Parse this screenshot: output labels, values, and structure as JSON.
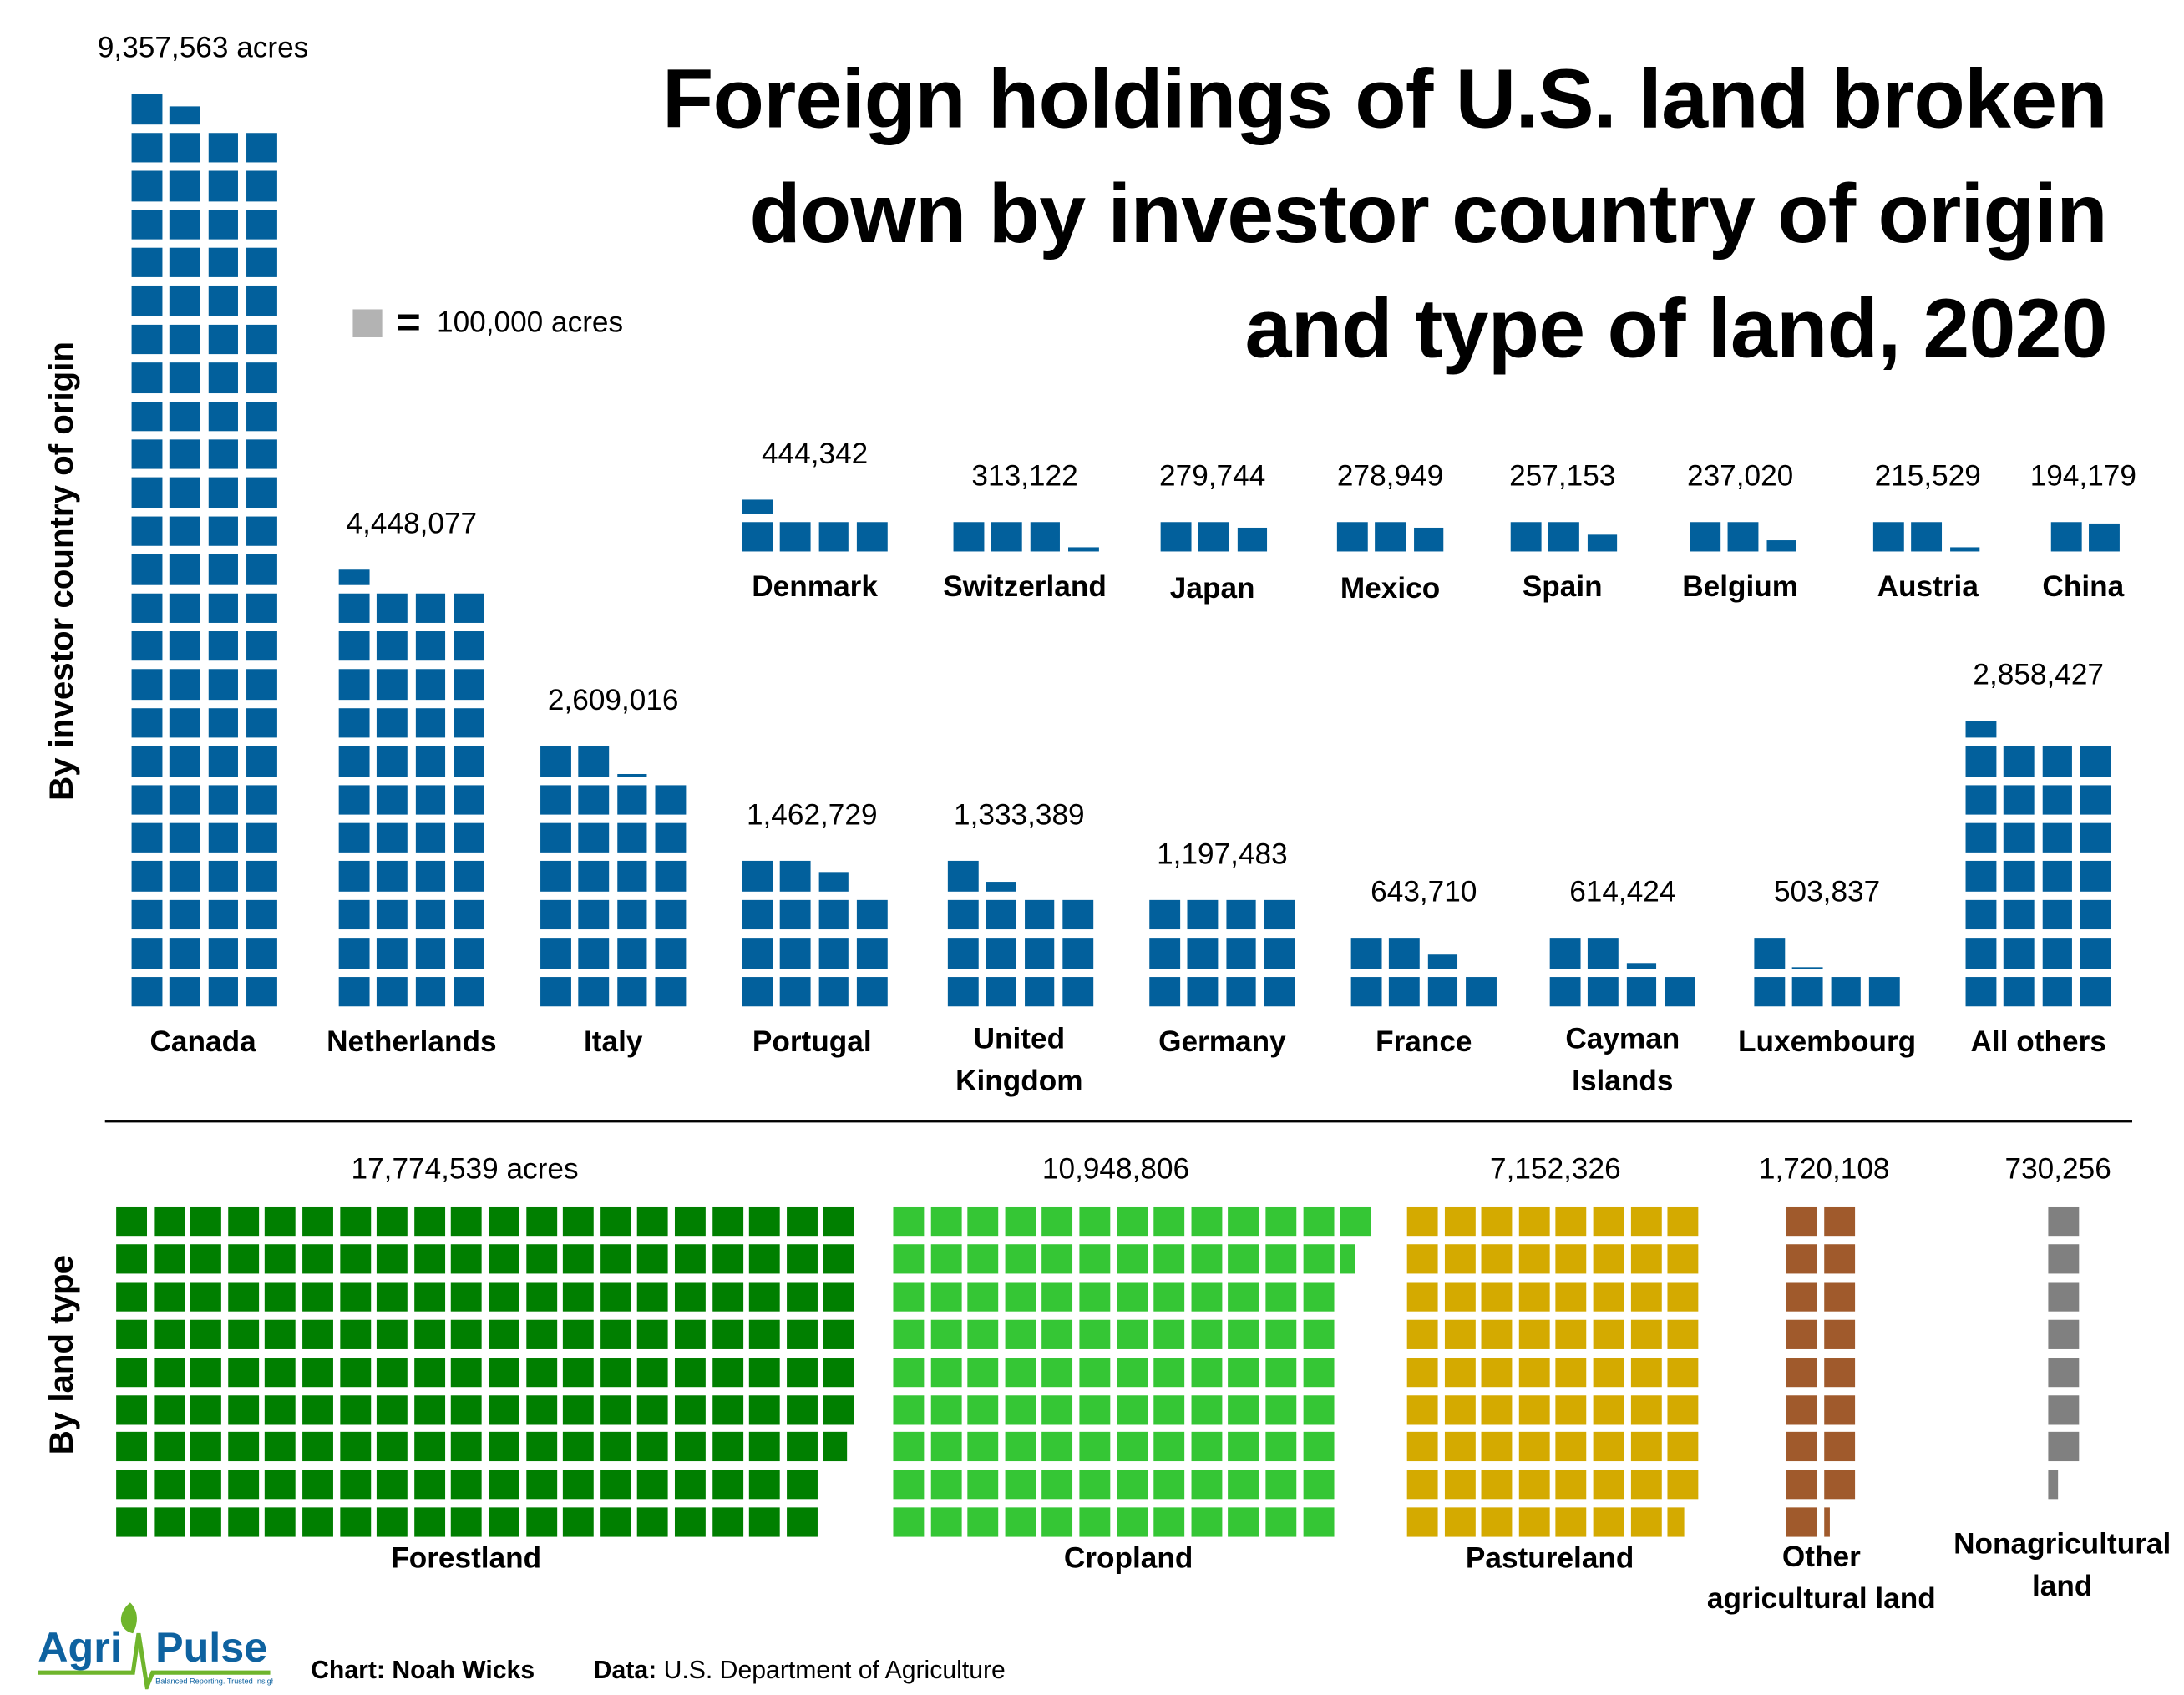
{
  "title": [
    "Foreign holdings of U.S. land broken",
    "down by investor country of origin",
    "and type of land, 2020"
  ],
  "legend": {
    "equals": "=",
    "label": "100,000 acres",
    "swatch_color": "#b3b3b3"
  },
  "axis_labels": {
    "country": "By investor country of origin",
    "land": "By land type"
  },
  "footer": {
    "chart_label": "Chart: Noah Wicks",
    "data_prefix": "Data:",
    "data_source": "U.S. Department of Agriculture",
    "logo_text": "AgriPulse",
    "logo_tagline": "Balanced Reporting. Trusted Insights."
  },
  "chart_data": [
    {
      "type": "waffle",
      "unit": "100,000 acres per square",
      "axis_label": "By investor country of origin",
      "color": "#02609c",
      "categories": [
        {
          "name": "Canada",
          "value": 9357563,
          "label": "9,357,563 acres"
        },
        {
          "name": "Netherlands",
          "value": 4448077,
          "label": "4,448,077"
        },
        {
          "name": "Italy",
          "value": 2609016,
          "label": "2,609,016"
        },
        {
          "name": "Portugal",
          "value": 1462729,
          "label": "1,462,729"
        },
        {
          "name": "United Kingdom",
          "value": 1333389,
          "label": "1,333,389"
        },
        {
          "name": "Germany",
          "value": 1197483,
          "label": "1,197,483"
        },
        {
          "name": "France",
          "value": 643710,
          "label": "643,710"
        },
        {
          "name": "Cayman Islands",
          "value": 614424,
          "label": "614,424"
        },
        {
          "name": "Luxembourg",
          "value": 503837,
          "label": "503,837"
        },
        {
          "name": "All others",
          "value": 2858427,
          "label": "2,858,427"
        },
        {
          "name": "Denmark",
          "value": 444342,
          "label": "444,342"
        },
        {
          "name": "Switzerland",
          "value": 313122,
          "label": "313,122"
        },
        {
          "name": "Japan",
          "value": 279744,
          "label": "279,744"
        },
        {
          "name": "Mexico",
          "value": 278949,
          "label": "278,949"
        },
        {
          "name": "Spain",
          "value": 257153,
          "label": "257,153"
        },
        {
          "name": "Belgium",
          "value": 237020,
          "label": "237,020"
        },
        {
          "name": "Austria",
          "value": 215529,
          "label": "215,529"
        },
        {
          "name": "China",
          "value": 194179,
          "label": "194,179"
        }
      ]
    },
    {
      "type": "waffle",
      "unit": "100,000 acres per square",
      "axis_label": "By land type",
      "categories": [
        {
          "name": "Forestland",
          "value": 17774539,
          "label": "17,774,539 acres",
          "color": "#007f00"
        },
        {
          "name": "Cropland",
          "value": 10948806,
          "label": "10,948,806",
          "color": "#35c635"
        },
        {
          "name": "Pastureland",
          "value": 7152326,
          "label": "7,152,326",
          "color": "#d4aa00"
        },
        {
          "name": "Other agricultural land",
          "value": 1720108,
          "label": "1,720,108",
          "color": "#a05a2c"
        },
        {
          "name": "Nonagricultural land",
          "value": 730256,
          "label": "730,256",
          "color": "#808080"
        }
      ]
    }
  ]
}
